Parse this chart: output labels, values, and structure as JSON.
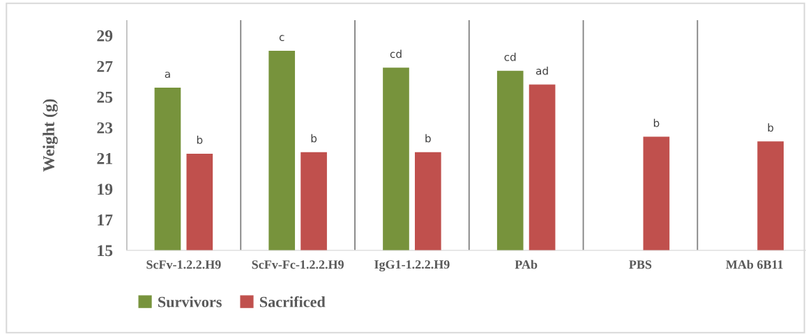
{
  "chart_data": {
    "type": "bar",
    "ylabel": "Weight (g)",
    "categories": [
      "ScFv-1.2.2.H9",
      "ScFv-Fc-1.2.2.H9",
      "IgG1-1.2.2.H9",
      "PAb",
      "PBS",
      "MAb 6B11"
    ],
    "series": [
      {
        "name": "Survivors",
        "color": "#77933c",
        "values": [
          25.6,
          28.0,
          26.9,
          26.7,
          null,
          null
        ],
        "value_labels": [
          "a",
          "c",
          "cd",
          "cd",
          null,
          null
        ]
      },
      {
        "name": "Sacrificed",
        "color": "#c0504d",
        "values": [
          21.3,
          21.4,
          21.4,
          25.8,
          22.4,
          22.1
        ],
        "value_labels": [
          "b",
          "b",
          "b",
          "ad",
          "b",
          "b"
        ]
      }
    ],
    "ylim": [
      15,
      30
    ],
    "yticks": [
      15,
      17,
      19,
      21,
      23,
      25,
      27,
      29
    ],
    "grid": "x",
    "legend": "bottom left"
  }
}
